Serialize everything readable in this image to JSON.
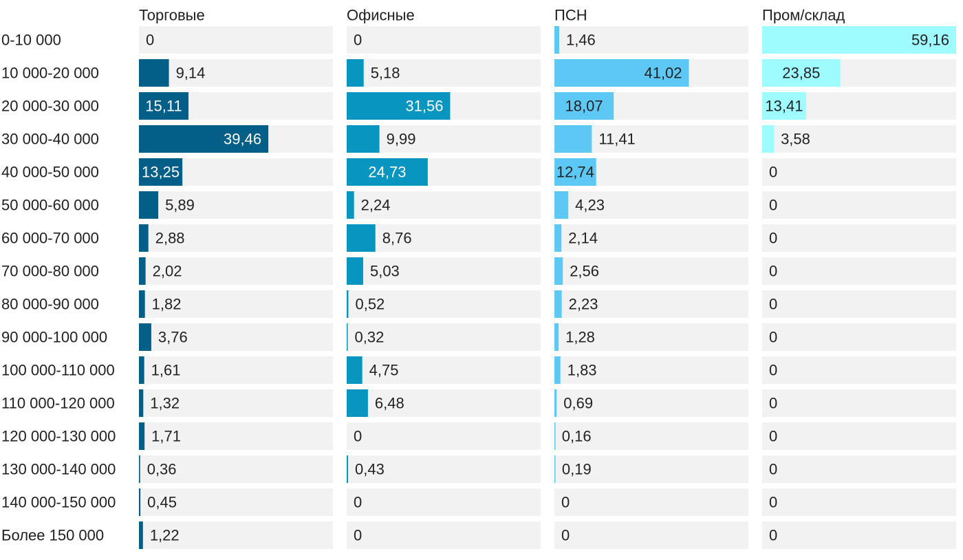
{
  "chart_data": {
    "type": "bar",
    "orientation": "horizontal",
    "layout": "small-multiples",
    "categories": [
      "0-10 000",
      "10 000-20 000",
      "20 000-30 000",
      "30 000-40 000",
      "40 000-50 000",
      "50 000-60 000",
      "60 000-70 000",
      "70 000-80 000",
      "80 000-90 000",
      "90 000-100 000",
      "100 000-110 000",
      "110 000-120 000",
      "120 000-130 000",
      "130 000-140 000",
      "140 000-150 000",
      "Более 150 000"
    ],
    "series": [
      {
        "name": "Торговые",
        "color": "#035f87",
        "values": [
          0,
          9.14,
          15.11,
          39.46,
          13.25,
          5.89,
          2.88,
          2.02,
          1.82,
          3.76,
          1.61,
          1.32,
          1.71,
          0.36,
          0.45,
          1.22
        ],
        "labels": [
          "0",
          "9,14",
          "15,11",
          "39,46",
          "13,25",
          "5,89",
          "2,88",
          "2,02",
          "1,82",
          "3,76",
          "1,61",
          "1,32",
          "1,71",
          "0,36",
          "0,45",
          "1,22"
        ]
      },
      {
        "name": "Офисные",
        "color": "#0895c0",
        "values": [
          0,
          5.18,
          31.56,
          9.99,
          24.73,
          2.24,
          8.76,
          5.03,
          0.52,
          0.32,
          4.75,
          6.48,
          0,
          0.43,
          0,
          0
        ],
        "labels": [
          "0",
          "5,18",
          "31,56",
          "9,99",
          "24,73",
          "2,24",
          "8,76",
          "5,03",
          "0,52",
          "0,32",
          "4,75",
          "6,48",
          "0",
          "0,43",
          "0",
          "0"
        ]
      },
      {
        "name": "ПСН",
        "color": "#5ec8f5",
        "values": [
          1.46,
          41.02,
          18.07,
          11.41,
          12.74,
          4.23,
          2.14,
          2.56,
          2.23,
          1.28,
          1.83,
          0.69,
          0.16,
          0.19,
          0,
          0
        ],
        "labels": [
          "1,46",
          "41,02",
          "18,07",
          "11,41",
          "12,74",
          "4,23",
          "2,14",
          "2,56",
          "2,23",
          "1,28",
          "1,83",
          "0,69",
          "0,16",
          "0,19",
          "0",
          "0"
        ]
      },
      {
        "name": "Пром/склад",
        "color": "#9efcff",
        "values": [
          59.16,
          23.85,
          13.41,
          3.58,
          0,
          0,
          0,
          0,
          0,
          0,
          0,
          0,
          0,
          0,
          0,
          0
        ],
        "labels": [
          "59,16",
          "23,85",
          "13,41",
          "3,58",
          "0",
          "0",
          "0",
          "0",
          "0",
          "0",
          "0",
          "0",
          "0",
          "0",
          "0",
          "0"
        ]
      }
    ],
    "track_color": "#f2f2f2"
  }
}
